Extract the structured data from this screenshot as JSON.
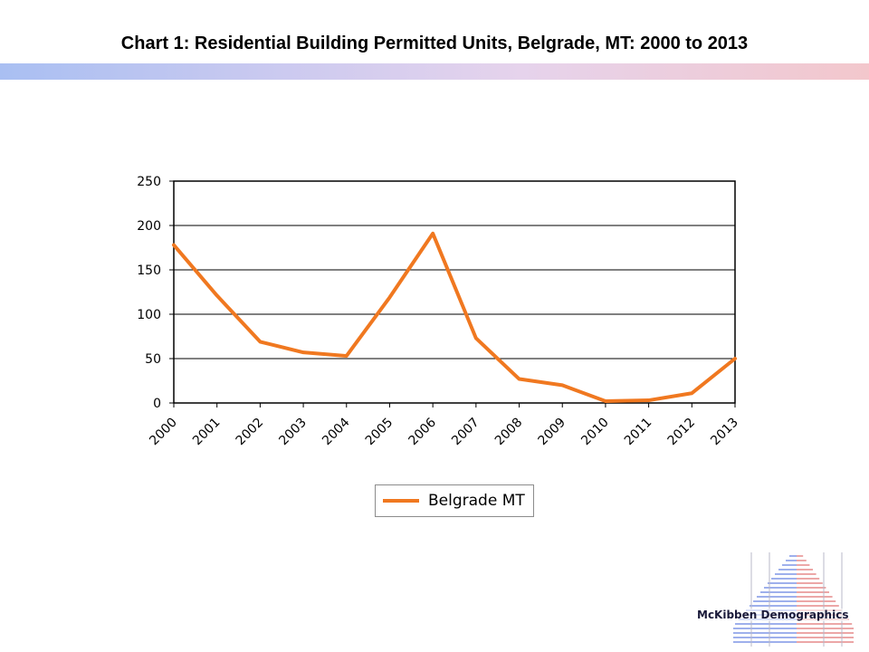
{
  "slide": {
    "title": "Chart 1:  Residential Building Permitted Units, Belgrade, MT:  2000 to 2013"
  },
  "chart_data": {
    "type": "line",
    "title": "",
    "xlabel": "",
    "ylabel": "",
    "categories": [
      "2000",
      "2001",
      "2002",
      "2003",
      "2004",
      "2005",
      "2006",
      "2007",
      "2008",
      "2009",
      "2010",
      "2011",
      "2012",
      "2013"
    ],
    "ylim": [
      0,
      250
    ],
    "yticks": [
      0,
      50,
      100,
      150,
      200,
      250
    ],
    "grid": "horizontal",
    "legend_position": "bottom",
    "series": [
      {
        "name": "Belgrade MT",
        "color": "#f07820",
        "values": [
          178,
          121,
          69,
          57,
          53,
          119,
          191,
          73,
          27,
          20,
          2,
          3,
          11,
          50
        ]
      }
    ]
  },
  "legend": {
    "label": "Belgrade MT"
  },
  "logo": {
    "text": "McKibben Demographics"
  }
}
